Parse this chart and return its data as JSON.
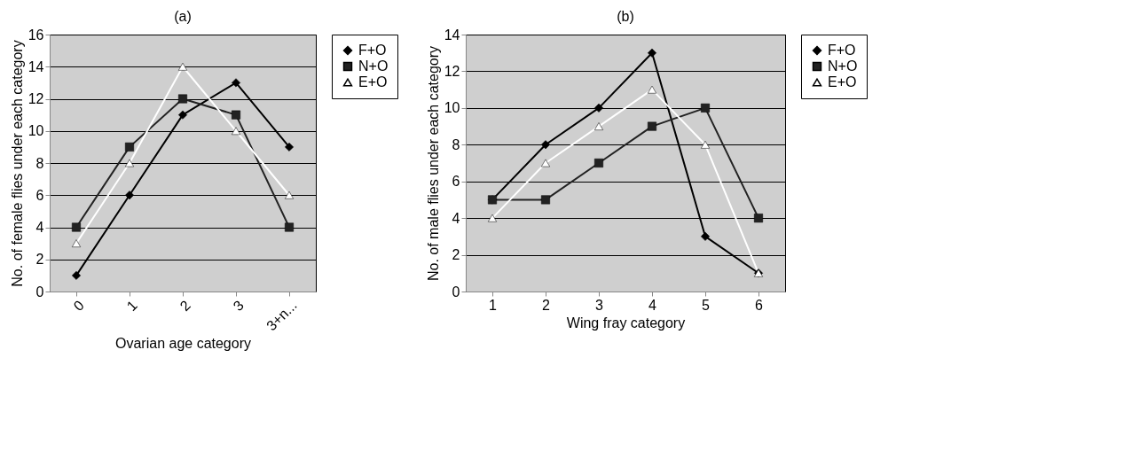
{
  "chart_data": [
    {
      "type": "line",
      "title": "(a)",
      "xlabel": "Ovarian age category",
      "ylabel": "No. of female flies under each category",
      "categories": [
        "0",
        "1",
        "2",
        "3",
        "3+n..."
      ],
      "ylim": [
        0,
        16
      ],
      "yticks": [
        0,
        2,
        4,
        6,
        8,
        10,
        12,
        14,
        16
      ],
      "grid": "y",
      "legend": "right",
      "series": [
        {
          "name": "F+O",
          "color": "#000000",
          "marker": "diamond",
          "values": [
            1,
            6,
            11,
            13,
            9
          ]
        },
        {
          "name": "N+O",
          "color": "#222222",
          "marker": "square",
          "values": [
            4,
            9,
            12,
            11,
            4
          ]
        },
        {
          "name": "E+O",
          "color": "#ffffff",
          "marker": "triangle",
          "values": [
            3,
            8,
            14,
            10,
            6
          ]
        }
      ]
    },
    {
      "type": "line",
      "title": "(b)",
      "xlabel": "Wing fray category",
      "ylabel": "No. of male flies under each category",
      "categories": [
        "1",
        "2",
        "3",
        "4",
        "5",
        "6"
      ],
      "ylim": [
        0,
        14
      ],
      "yticks": [
        0,
        2,
        4,
        6,
        8,
        10,
        12,
        14
      ],
      "grid": "y",
      "legend": "right",
      "series": [
        {
          "name": "F+O",
          "color": "#000000",
          "marker": "diamond",
          "values": [
            5,
            8,
            10,
            13,
            3,
            1
          ]
        },
        {
          "name": "N+O",
          "color": "#222222",
          "marker": "square",
          "values": [
            5,
            5,
            7,
            9,
            10,
            4
          ]
        },
        {
          "name": "E+O",
          "color": "#ffffff",
          "marker": "triangle",
          "values": [
            4,
            7,
            9,
            11,
            8,
            1
          ]
        }
      ]
    }
  ]
}
